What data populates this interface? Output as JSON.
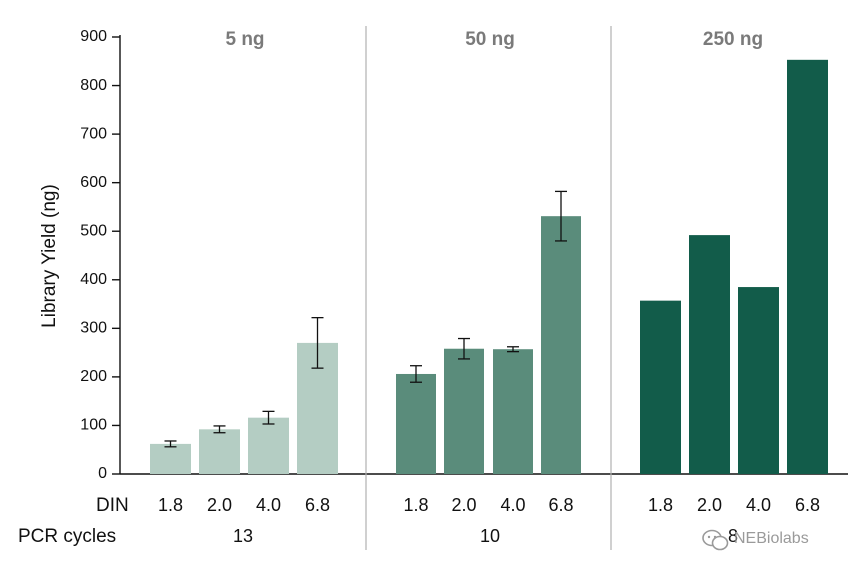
{
  "chart_data": {
    "type": "bar",
    "ylabel": "Library Yield (ng)",
    "ylim": [
      0,
      900
    ],
    "yticks": [
      0,
      100,
      200,
      300,
      400,
      500,
      600,
      700,
      800,
      900
    ],
    "grid": false,
    "row_labels": {
      "din": "DIN",
      "pcr": "PCR cycles"
    },
    "groups": [
      {
        "title": "5 ng",
        "color": "#b4cdc3",
        "pcr_cycles": "13",
        "bars": [
          {
            "din": "1.8",
            "value": 62,
            "error": 6
          },
          {
            "din": "2.0",
            "value": 92,
            "error": 7
          },
          {
            "din": "4.0",
            "value": 116,
            "error": 13
          },
          {
            "din": "6.8",
            "value": 270,
            "error": 52
          }
        ]
      },
      {
        "title": "50 ng",
        "color": "#5a8c7b",
        "pcr_cycles": "10",
        "bars": [
          {
            "din": "1.8",
            "value": 206,
            "error": 17
          },
          {
            "din": "2.0",
            "value": 258,
            "error": 21
          },
          {
            "din": "4.0",
            "value": 257,
            "error": 5
          },
          {
            "din": "6.8",
            "value": 531,
            "error": 51
          }
        ]
      },
      {
        "title": "250 ng",
        "color": "#125c4a",
        "pcr_cycles": "8",
        "bars": [
          {
            "din": "1.8",
            "value": 357,
            "error": null
          },
          {
            "din": "2.0",
            "value": 492,
            "error": null
          },
          {
            "din": "4.0",
            "value": 385,
            "error": null
          },
          {
            "din": "6.8",
            "value": 853,
            "error": null
          }
        ]
      }
    ]
  },
  "watermark": {
    "icon": "wechat-icon",
    "text": "NEBiolabs"
  }
}
